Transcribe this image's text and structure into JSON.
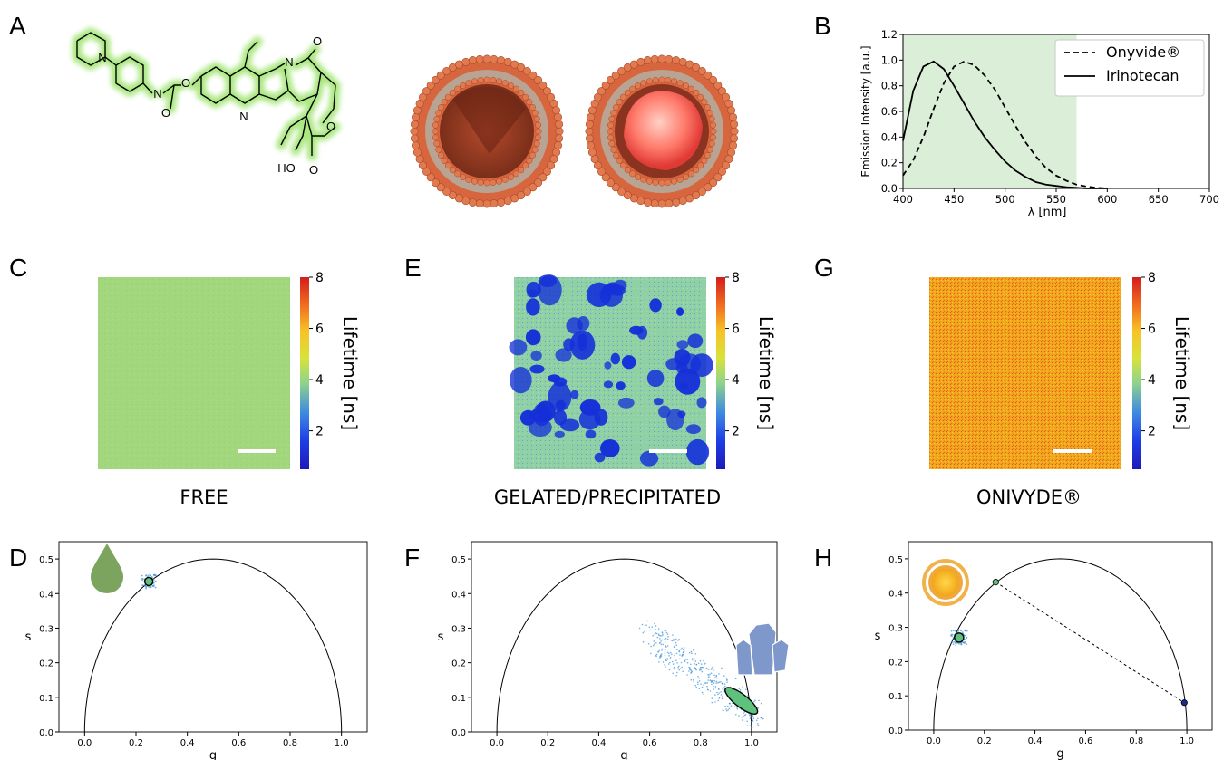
{
  "panel_labels": [
    "A",
    "B",
    "C",
    "D",
    "E",
    "F",
    "G",
    "H"
  ],
  "molecule": {
    "labels": {
      "n1": "N",
      "n2": "N",
      "n3": "N",
      "n4": "N",
      "o_ring": "O",
      "o_ester": "O",
      "o_carbonyl1": "O",
      "o_carbonyl2": "O",
      "o_carbonyl3": "O",
      "ho": "HO"
    }
  },
  "captions": {
    "free": "FREE",
    "gelated": "GELATED/PRECIPITATED",
    "onivyde": "ONIVYDE®"
  },
  "colorbar": {
    "label": "Lifetime [ns]",
    "ticks": [
      "8",
      "6",
      "4",
      "2"
    ],
    "range": [
      0.5,
      8
    ]
  },
  "colors": {
    "free_fill": "#9fd67c",
    "gel_base": "#8fd0a6",
    "gel_spots": "#1530d8",
    "onivyde_fill": "#f0a21c",
    "glow": "#9be36b",
    "liposome": "#d7653e",
    "shade": "#dbeed8"
  },
  "icons": {
    "D": "droplet-icon",
    "F": "crystal-icon",
    "H": "liposome-icon"
  },
  "chart_data": [
    {
      "panel": "B",
      "type": "line",
      "xlabel": "λ [nm]",
      "ylabel": "Emission Intensity [a.u.]",
      "xlim": [
        400,
        700
      ],
      "ylim": [
        0.0,
        1.2
      ],
      "xticks": [
        "400",
        "450",
        "500",
        "550",
        "600",
        "650",
        "700"
      ],
      "yticks": [
        "0.0",
        "0.2",
        "0.4",
        "0.6",
        "0.8",
        "1.0",
        "1.2"
      ],
      "shaded_region": [
        400,
        570
      ],
      "legend_position": "top-right",
      "series": [
        {
          "name": "Onyvide®",
          "style": "dashed",
          "x": [
            400,
            410,
            420,
            430,
            440,
            450,
            460,
            470,
            480,
            490,
            500,
            510,
            520,
            530,
            540,
            550,
            560,
            570,
            580,
            590,
            600
          ],
          "values": [
            0.1,
            0.22,
            0.4,
            0.62,
            0.82,
            0.95,
            0.99,
            0.96,
            0.88,
            0.77,
            0.63,
            0.49,
            0.36,
            0.25,
            0.16,
            0.1,
            0.06,
            0.03,
            0.015,
            0.005,
            0.0
          ]
        },
        {
          "name": "Irinotecan",
          "style": "solid",
          "x": [
            400,
            410,
            420,
            430,
            440,
            450,
            460,
            470,
            480,
            490,
            500,
            510,
            520,
            530,
            540,
            550,
            560,
            570,
            580,
            590,
            600
          ],
          "values": [
            0.37,
            0.76,
            0.95,
            0.99,
            0.93,
            0.8,
            0.66,
            0.52,
            0.4,
            0.3,
            0.21,
            0.14,
            0.09,
            0.05,
            0.03,
            0.02,
            0.01,
            0.005,
            0.0,
            0.0,
            0.0
          ]
        }
      ]
    },
    {
      "panel": "D",
      "type": "scatter",
      "xlabel": "g",
      "ylabel": "s",
      "xlim": [
        -0.1,
        1.1
      ],
      "ylim": [
        0.0,
        0.55
      ],
      "xticks": [
        "0.0",
        "0.2",
        "0.4",
        "0.6",
        "0.8",
        "1.0"
      ],
      "yticks": [
        "0.0",
        "0.1",
        "0.2",
        "0.3",
        "0.4",
        "0.5"
      ],
      "cluster_center": [
        0.25,
        0.435
      ]
    },
    {
      "panel": "F",
      "type": "scatter",
      "xlabel": "g",
      "ylabel": "s",
      "xlim": [
        -0.1,
        1.1
      ],
      "ylim": [
        0.0,
        0.55
      ],
      "xticks": [
        "0.0",
        "0.2",
        "0.4",
        "0.6",
        "0.8",
        "1.0"
      ],
      "yticks": [
        "0.0",
        "0.1",
        "0.2",
        "0.3",
        "0.4",
        "0.5"
      ],
      "cluster_center": [
        0.96,
        0.09
      ],
      "cluster_spread_range": {
        "g": [
          0.6,
          1.03
        ],
        "s": [
          0.02,
          0.3
        ]
      }
    },
    {
      "panel": "H",
      "type": "scatter",
      "xlabel": "g",
      "ylabel": "s",
      "xlim": [
        -0.1,
        1.1
      ],
      "ylim": [
        0.0,
        0.55
      ],
      "xticks": [
        "0.0",
        "0.2",
        "0.4",
        "0.6",
        "0.8",
        "1.0"
      ],
      "yticks": [
        "0.0",
        "0.1",
        "0.2",
        "0.3",
        "0.4",
        "0.5"
      ],
      "cluster_center": [
        0.1,
        0.27
      ],
      "line_from": [
        0.245,
        0.432
      ],
      "line_to": [
        0.99,
        0.08
      ]
    }
  ]
}
